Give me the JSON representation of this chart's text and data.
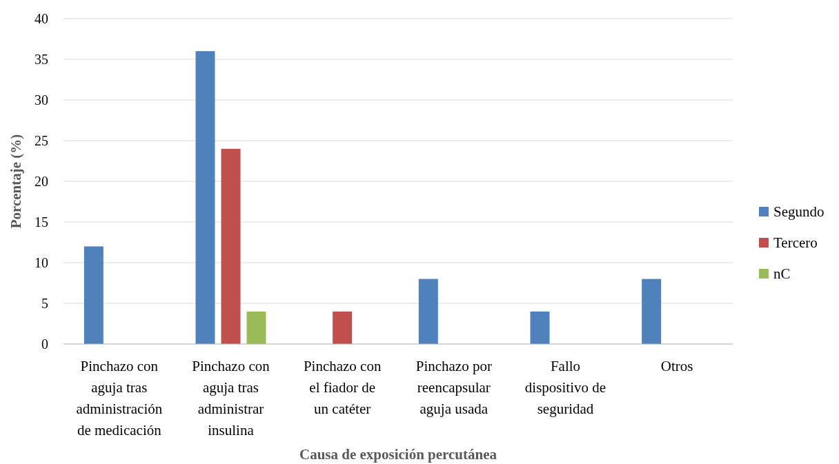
{
  "chart_data": {
    "type": "bar",
    "xlabel": "Causa de exposición percutánea",
    "ylabel": "Porcentaje (%)",
    "categories": [
      "Pinchazo con aguja tras administración de medicación",
      "Pinchazo con aguja tras administrar insulina",
      "Pinchazo con el fiador de un catéter",
      "Pinchazo por reencapsular aguja usada",
      "Fallo dispositivo de seguridad",
      "Otros"
    ],
    "series": [
      {
        "name": "Segundo",
        "color": "#4f81bd",
        "values": [
          12,
          36,
          0,
          8,
          4,
          8
        ]
      },
      {
        "name": "Tercero",
        "color": "#c0504d",
        "values": [
          0,
          24,
          4,
          0,
          0,
          0
        ]
      },
      {
        "name": "nC",
        "color": "#9bbb59",
        "values": [
          0,
          4,
          0,
          0,
          0,
          0
        ]
      }
    ],
    "ylim": [
      0,
      40
    ],
    "yticks": [
      0,
      5,
      10,
      15,
      20,
      25,
      30,
      35,
      40
    ],
    "grid": "y",
    "legend": "right"
  }
}
